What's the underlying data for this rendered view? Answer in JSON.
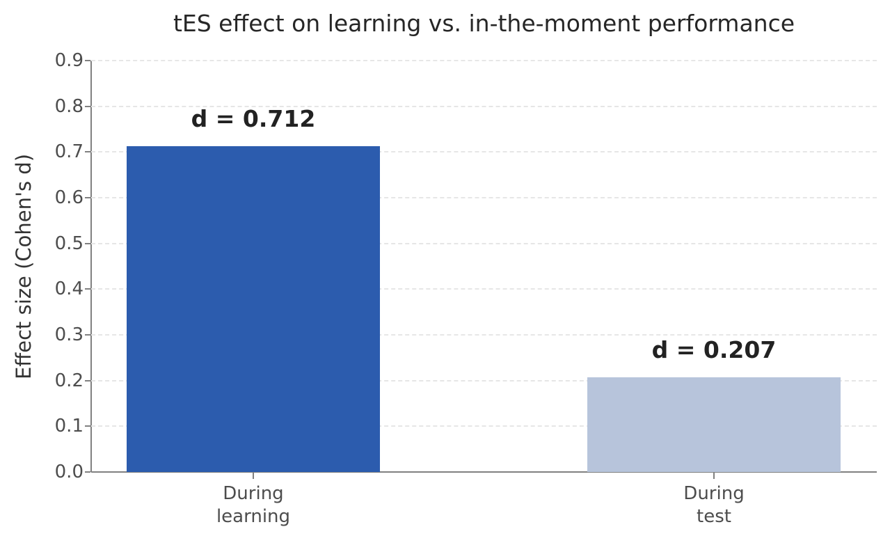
{
  "chart_data": {
    "type": "bar",
    "title": "tES effect on learning vs. in-the-moment performance",
    "xlabel": "",
    "ylabel": "Effect size (Cohen's d)",
    "ylim": [
      0,
      0.9
    ],
    "yticks": [
      "0.0",
      "0.1",
      "0.2",
      "0.3",
      "0.4",
      "0.5",
      "0.6",
      "0.7",
      "0.8",
      "0.9"
    ],
    "grid": "horizontal dashed",
    "categories": [
      "During\nlearning",
      "During\ntest"
    ],
    "values": [
      0.712,
      0.207
    ],
    "bar_labels": [
      "d = 0.712",
      "d = 0.207"
    ],
    "colors": [
      "#2c5cae",
      "#b7c4db"
    ]
  }
}
